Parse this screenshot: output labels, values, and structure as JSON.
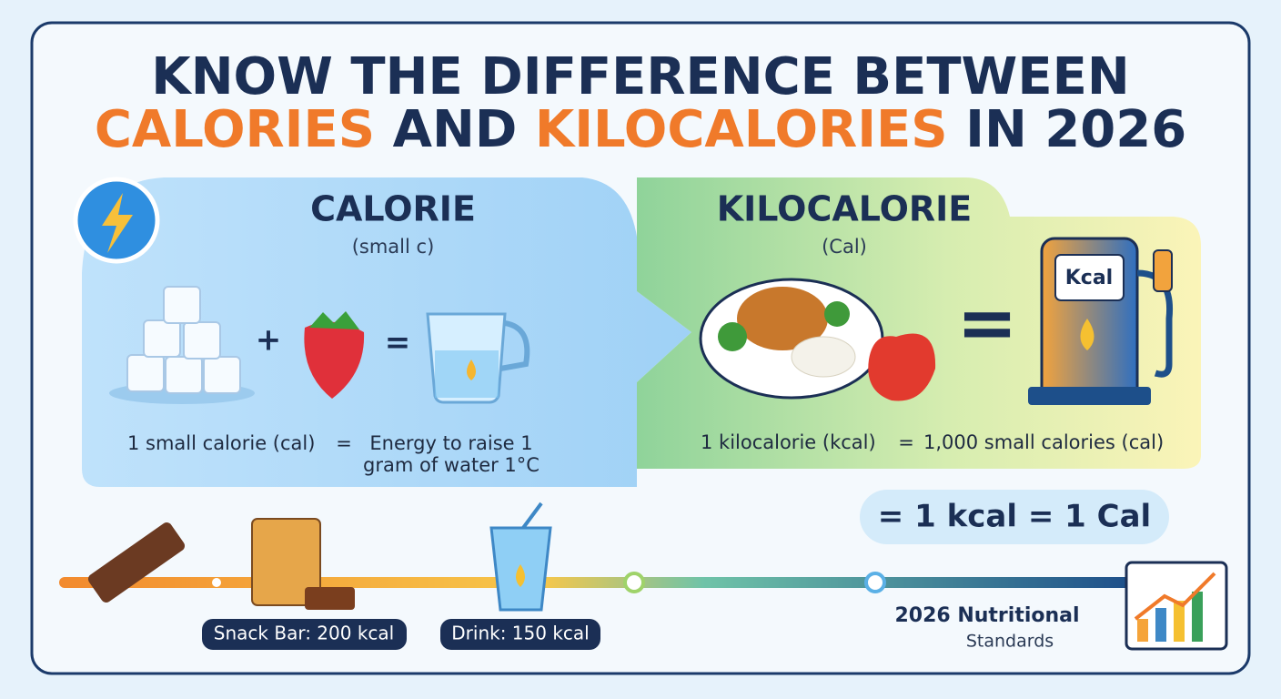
{
  "title": {
    "line1": "KNOW THE DIFFERENCE BETWEEN",
    "line2": [
      "CALORIES",
      "AND",
      "KILOCALORIES",
      "IN 2026"
    ]
  },
  "calorie": {
    "heading": "CALORIE",
    "subheading": "(small c)",
    "plus": "+",
    "equals": "=",
    "definition": {
      "left": "1 small calorie (cal)",
      "equals": "=",
      "right": [
        "Energy to raise 1",
        "gram of water 1°C"
      ]
    }
  },
  "kilocalorie": {
    "heading": "KILOCALORIE",
    "subheading": "(Cal)",
    "equals": "=",
    "pump_label": "Kcal",
    "definition": {
      "left": "1 kilocalorie (kcal)",
      "equals": "=",
      "right": "1,000 small calories (cal)"
    }
  },
  "badge": "= 1 kcal = 1 Cal",
  "timeline": {
    "snack": "Snack Bar: 200 kcal",
    "drink": "Drink: 150 kcal",
    "standards": [
      "2026 Nutritional",
      "Standards"
    ]
  }
}
